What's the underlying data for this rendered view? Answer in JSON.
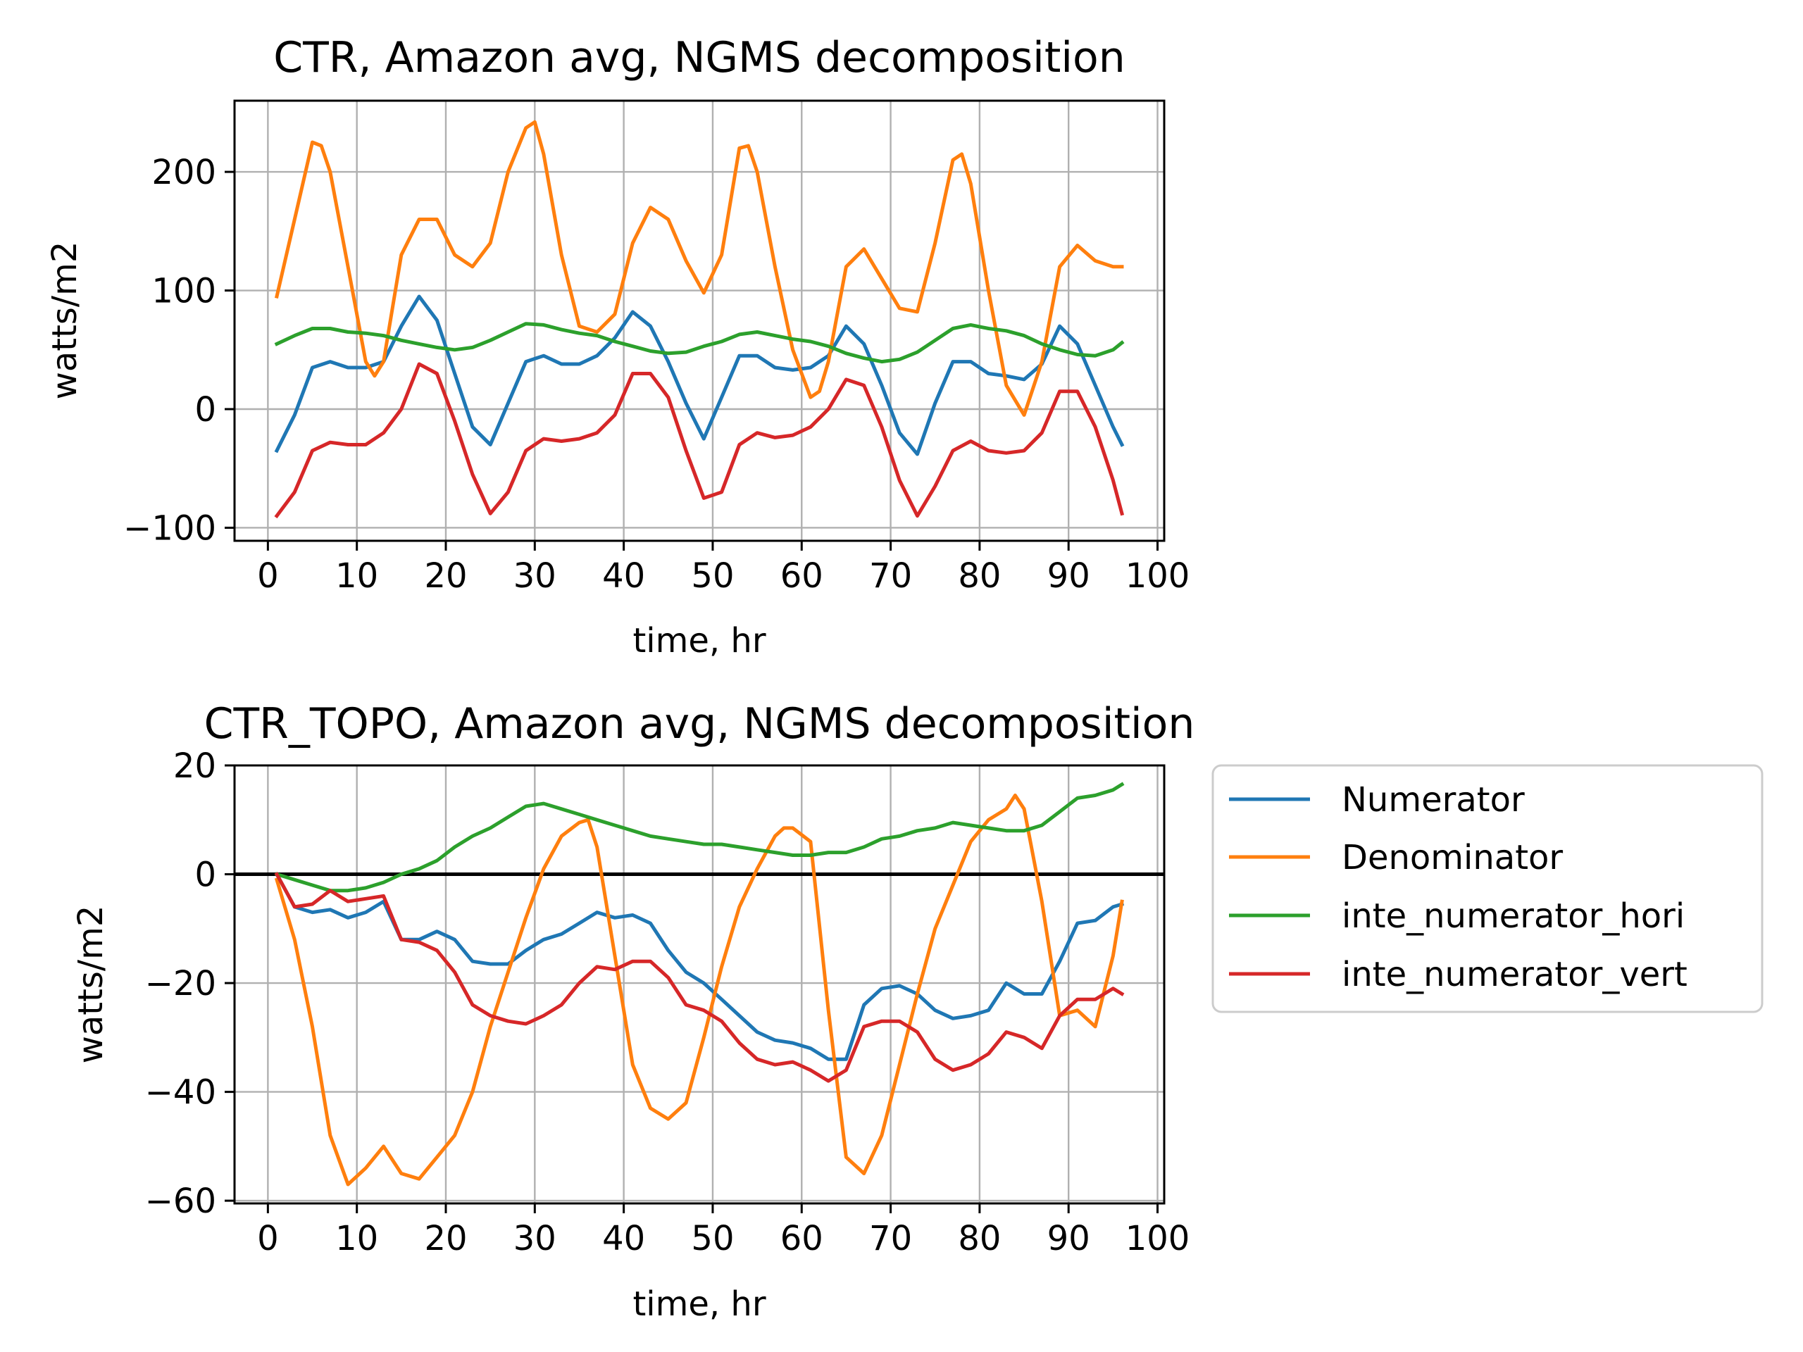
{
  "chart_data": [
    {
      "type": "line",
      "title": "CTR, Amazon avg, NGMS decomposition",
      "xlabel": "time, hr",
      "ylabel": "watts/m2",
      "xlim": [
        -3.75,
        100.75
      ],
      "ylim": [
        -111,
        260
      ],
      "grid": true,
      "x_ticks": [
        0,
        10,
        20,
        30,
        40,
        50,
        60,
        70,
        80,
        90,
        100
      ],
      "x_tick_labels": [
        "0",
        "10",
        "20",
        "30",
        "40",
        "50",
        "60",
        "70",
        "80",
        "90",
        "100"
      ],
      "y_ticks": [
        -100,
        0,
        100,
        200
      ],
      "y_tick_labels": [
        "−100",
        "0",
        "100",
        "200"
      ],
      "zero_line": false,
      "series": [
        {
          "name": "Numerator",
          "color": "#1f77b4",
          "x": [
            1,
            3,
            5,
            7,
            9,
            11,
            13,
            15,
            17,
            19,
            21,
            23,
            25,
            27,
            29,
            31,
            33,
            35,
            37,
            39,
            41,
            43,
            45,
            47,
            49,
            51,
            53,
            55,
            57,
            59,
            61,
            63,
            65,
            67,
            69,
            71,
            73,
            75,
            77,
            79,
            81,
            83,
            85,
            87,
            89,
            91,
            93,
            95,
            96
          ],
          "y": [
            -35,
            -5,
            35,
            40,
            35,
            35,
            40,
            70,
            95,
            75,
            30,
            -15,
            -30,
            5,
            40,
            45,
            38,
            38,
            45,
            60,
            82,
            70,
            40,
            5,
            -25,
            10,
            45,
            45,
            35,
            33,
            35,
            45,
            70,
            55,
            20,
            -20,
            -38,
            5,
            40,
            40,
            30,
            28,
            25,
            38,
            70,
            55,
            20,
            -15,
            -30
          ]
        },
        {
          "name": "Denominator",
          "color": "#ff7f0e",
          "x": [
            1,
            3,
            5,
            6,
            7,
            9,
            11,
            12,
            13,
            15,
            17,
            19,
            21,
            23,
            25,
            27,
            29,
            30,
            31,
            33,
            35,
            37,
            39,
            41,
            43,
            45,
            47,
            49,
            51,
            53,
            54,
            55,
            57,
            59,
            61,
            62,
            63,
            65,
            67,
            69,
            71,
            73,
            75,
            77,
            78,
            79,
            81,
            83,
            85,
            87,
            89,
            91,
            93,
            95,
            96
          ],
          "y": [
            95,
            160,
            225,
            222,
            200,
            120,
            40,
            28,
            40,
            130,
            160,
            160,
            130,
            120,
            140,
            200,
            237,
            242,
            215,
            130,
            70,
            65,
            80,
            140,
            170,
            160,
            125,
            98,
            130,
            220,
            222,
            200,
            120,
            50,
            10,
            15,
            40,
            120,
            135,
            110,
            85,
            82,
            140,
            210,
            215,
            190,
            100,
            20,
            -5,
            40,
            120,
            138,
            125,
            120,
            120
          ]
        },
        {
          "name": "inte_numerator_hori",
          "color": "#2ca02c",
          "x": [
            1,
            3,
            5,
            7,
            9,
            11,
            13,
            15,
            17,
            19,
            21,
            23,
            25,
            27,
            29,
            31,
            33,
            35,
            37,
            39,
            41,
            43,
            45,
            47,
            49,
            51,
            53,
            55,
            57,
            59,
            61,
            63,
            65,
            67,
            69,
            71,
            73,
            75,
            77,
            79,
            81,
            83,
            85,
            87,
            89,
            91,
            93,
            95,
            96
          ],
          "y": [
            55,
            62,
            68,
            68,
            65,
            64,
            62,
            58,
            55,
            52,
            50,
            52,
            58,
            65,
            72,
            71,
            67,
            64,
            62,
            57,
            53,
            49,
            47,
            48,
            53,
            57,
            63,
            65,
            62,
            59,
            57,
            53,
            47,
            43,
            40,
            42,
            48,
            58,
            68,
            71,
            68,
            66,
            62,
            55,
            50,
            46,
            45,
            50,
            56
          ]
        },
        {
          "name": "inte_numerator_vert",
          "color": "#d62728",
          "x": [
            1,
            3,
            5,
            7,
            9,
            11,
            13,
            15,
            17,
            19,
            21,
            23,
            25,
            27,
            29,
            31,
            33,
            35,
            37,
            39,
            41,
            43,
            45,
            47,
            49,
            51,
            53,
            55,
            57,
            59,
            61,
            63,
            65,
            67,
            69,
            71,
            73,
            75,
            77,
            79,
            81,
            83,
            85,
            87,
            89,
            91,
            93,
            95,
            96
          ],
          "y": [
            -90,
            -70,
            -35,
            -28,
            -30,
            -30,
            -20,
            0,
            38,
            30,
            -10,
            -55,
            -88,
            -70,
            -35,
            -25,
            -27,
            -25,
            -20,
            -5,
            30,
            30,
            10,
            -35,
            -75,
            -70,
            -30,
            -20,
            -24,
            -22,
            -15,
            0,
            25,
            20,
            -15,
            -60,
            -90,
            -65,
            -35,
            -27,
            -35,
            -37,
            -35,
            -20,
            15,
            15,
            -15,
            -60,
            -88
          ]
        }
      ]
    },
    {
      "type": "line",
      "title": "CTR_TOPO, Amazon avg, NGMS decomposition",
      "xlabel": "time, hr",
      "ylabel": "watts/m2",
      "xlim": [
        -3.75,
        100.75
      ],
      "ylim": [
        -60.5,
        20
      ],
      "grid": true,
      "x_ticks": [
        0,
        10,
        20,
        30,
        40,
        50,
        60,
        70,
        80,
        90,
        100
      ],
      "x_tick_labels": [
        "0",
        "10",
        "20",
        "30",
        "40",
        "50",
        "60",
        "70",
        "80",
        "90",
        "100"
      ],
      "y_ticks": [
        -60,
        -40,
        -20,
        0,
        20
      ],
      "y_tick_labels": [
        "−60",
        "−40",
        "−20",
        "0",
        "20"
      ],
      "zero_line": true,
      "series": [
        {
          "name": "Numerator",
          "color": "#1f77b4",
          "x": [
            1,
            3,
            5,
            7,
            9,
            11,
            13,
            15,
            17,
            19,
            21,
            23,
            25,
            27,
            29,
            31,
            33,
            35,
            37,
            39,
            41,
            43,
            45,
            47,
            49,
            51,
            53,
            55,
            57,
            59,
            61,
            63,
            65,
            67,
            69,
            71,
            73,
            75,
            77,
            79,
            81,
            83,
            85,
            87,
            89,
            91,
            93,
            95,
            96
          ],
          "y": [
            0,
            -6,
            -7,
            -6.5,
            -8,
            -7,
            -5,
            -12,
            -12,
            -10.5,
            -12,
            -16,
            -16.5,
            -16.5,
            -14,
            -12,
            -11,
            -9,
            -7,
            -8,
            -7.5,
            -9,
            -14,
            -18,
            -20,
            -23,
            -26,
            -29,
            -30.5,
            -31,
            -32,
            -34,
            -34,
            -24,
            -21,
            -20.5,
            -22,
            -25,
            -26.5,
            -26,
            -25,
            -20,
            -22,
            -22,
            -16,
            -9,
            -8.5,
            -6,
            -5.5
          ]
        },
        {
          "name": "Denominator",
          "color": "#ff7f0e",
          "x": [
            1,
            3,
            5,
            7,
            9,
            11,
            13,
            15,
            17,
            19,
            21,
            23,
            25,
            27,
            29,
            31,
            33,
            35,
            36,
            37,
            39,
            41,
            43,
            45,
            47,
            49,
            51,
            53,
            55,
            57,
            58,
            59,
            61,
            63,
            65,
            67,
            69,
            71,
            73,
            75,
            77,
            79,
            81,
            83,
            84,
            85,
            87,
            89,
            91,
            93,
            95,
            96
          ],
          "y": [
            -1,
            -12,
            -28,
            -48,
            -57,
            -54,
            -50,
            -55,
            -56,
            -52,
            -48,
            -40,
            -28,
            -18,
            -8,
            1,
            7,
            9.5,
            10,
            5,
            -15,
            -35,
            -43,
            -45,
            -42,
            -30,
            -17,
            -6,
            1,
            7,
            8.5,
            8.5,
            6,
            -25,
            -52,
            -55,
            -48,
            -35,
            -22,
            -10,
            -2,
            6,
            10,
            12,
            14.5,
            12,
            -5,
            -26,
            -25,
            -28,
            -15,
            -5
          ]
        },
        {
          "name": "inte_numerator_hori",
          "color": "#2ca02c",
          "x": [
            1,
            3,
            5,
            7,
            9,
            11,
            13,
            15,
            17,
            19,
            21,
            23,
            25,
            27,
            29,
            31,
            33,
            35,
            37,
            39,
            41,
            43,
            45,
            47,
            49,
            51,
            53,
            55,
            57,
            59,
            61,
            63,
            65,
            67,
            69,
            71,
            73,
            75,
            77,
            79,
            81,
            83,
            85,
            87,
            89,
            91,
            93,
            95,
            96
          ],
          "y": [
            0,
            -1,
            -2,
            -3,
            -3,
            -2.5,
            -1.5,
            0,
            1,
            2.5,
            5,
            7,
            8.5,
            10.5,
            12.5,
            13,
            12,
            11,
            10,
            9,
            8,
            7,
            6.5,
            6,
            5.5,
            5.5,
            5,
            4.5,
            4,
            3.5,
            3.5,
            4,
            4,
            5,
            6.5,
            7,
            8,
            8.5,
            9.5,
            9,
            8.5,
            8,
            8,
            9,
            11.5,
            14,
            14.5,
            15.5,
            16.5
          ]
        },
        {
          "name": "inte_numerator_vert",
          "color": "#d62728",
          "x": [
            1,
            3,
            5,
            7,
            9,
            11,
            13,
            15,
            17,
            19,
            21,
            23,
            25,
            27,
            29,
            31,
            33,
            35,
            37,
            39,
            41,
            43,
            45,
            47,
            49,
            51,
            53,
            55,
            57,
            59,
            61,
            63,
            65,
            67,
            69,
            71,
            73,
            75,
            77,
            79,
            81,
            83,
            85,
            87,
            89,
            91,
            93,
            95,
            96
          ],
          "y": [
            0,
            -6,
            -5.5,
            -3,
            -5,
            -4.5,
            -4,
            -12,
            -12.5,
            -14,
            -18,
            -24,
            -26,
            -27,
            -27.5,
            -26,
            -24,
            -20,
            -17,
            -17.5,
            -16,
            -16,
            -19,
            -24,
            -25,
            -27,
            -31,
            -34,
            -35,
            -34.5,
            -36,
            -38,
            -36,
            -28,
            -27,
            -27,
            -29,
            -34,
            -36,
            -35,
            -33,
            -29,
            -30,
            -32,
            -26,
            -23,
            -23,
            -21,
            -22
          ]
        }
      ]
    }
  ],
  "legend": {
    "placement": "right",
    "entries": [
      {
        "label": "Numerator",
        "color": "#1f77b4"
      },
      {
        "label": "Denominator",
        "color": "#ff7f0e"
      },
      {
        "label": "inte_numerator_hori",
        "color": "#2ca02c"
      },
      {
        "label": "inte_numerator_vert",
        "color": "#d62728"
      }
    ]
  }
}
